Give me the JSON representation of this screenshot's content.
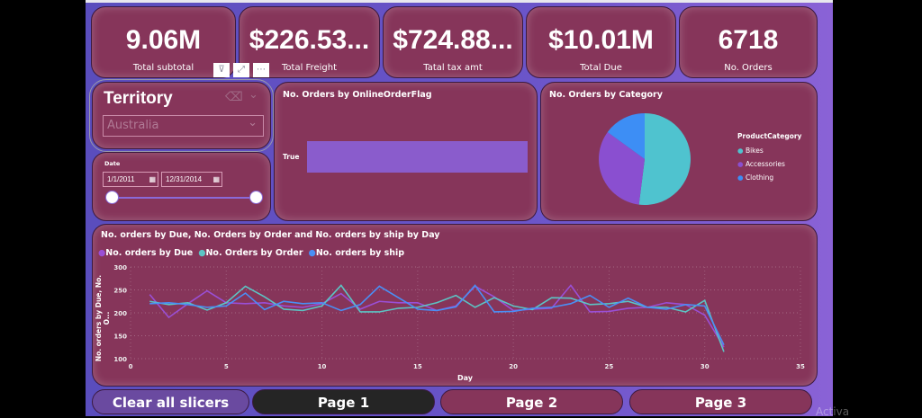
{
  "kpis": [
    {
      "value": "9.06M",
      "label": "Total subtotal"
    },
    {
      "value": "$226.53...",
      "label": "Total Freight"
    },
    {
      "value": "$724.88...",
      "label": "Tatal tax amt"
    },
    {
      "value": "$10.01M",
      "label": "Total Due"
    },
    {
      "value": "6718",
      "label": "No. Orders"
    }
  ],
  "territory": {
    "title": "Territory",
    "selected": "Australia"
  },
  "date": {
    "label": "Date",
    "start": "1/1/2011",
    "end": "12/31/2014",
    "range_fraction": [
      0,
      1
    ]
  },
  "chart_data": [
    {
      "type": "bar",
      "title": "No. Orders by OnlineOrderFlag",
      "categories": [
        "True"
      ],
      "values": [
        6718
      ]
    },
    {
      "type": "pie",
      "title": "No. Orders by Category",
      "legend_title": "ProductCategory",
      "categories": [
        "Bikes",
        "Accessories",
        "Clothing"
      ],
      "values": [
        52,
        33,
        15
      ],
      "colors": [
        "#4fc3cf",
        "#8a4fd0",
        "#3d8ef5"
      ],
      "legend": "right"
    },
    {
      "type": "line",
      "title": "No. orders by Due, No. Orders by Order and No. orders by ship by Day",
      "xlabel": "Day",
      "ylabel": "No. orders by Due, No. O...",
      "xlim": [
        0,
        35
      ],
      "ylim": [
        100,
        300
      ],
      "xticks": [
        "0",
        "5",
        "10",
        "15",
        "20",
        "25",
        "30",
        "35"
      ],
      "yticks": [
        "100",
        "150",
        "200",
        "250",
        "300"
      ],
      "x": [
        1,
        2,
        3,
        4,
        5,
        6,
        7,
        8,
        9,
        10,
        11,
        12,
        13,
        14,
        15,
        16,
        17,
        18,
        19,
        20,
        21,
        22,
        23,
        24,
        25,
        26,
        27,
        28,
        29,
        30,
        31
      ],
      "series": [
        {
          "name": "No. orders by Due",
          "color": "#9a4fd6",
          "values": [
            240,
            190,
            220,
            248,
            222,
            220,
            222,
            215,
            212,
            220,
            242,
            208,
            225,
            222,
            222,
            205,
            215,
            258,
            235,
            205,
            208,
            210,
            260,
            202,
            203,
            210,
            212,
            222,
            218,
            195,
            125
          ]
        },
        {
          "name": "No. Orders by Order",
          "color": "#5cc4c4",
          "values": [
            225,
            218,
            222,
            206,
            222,
            258,
            235,
            208,
            205,
            215,
            260,
            202,
            202,
            210,
            212,
            222,
            238,
            212,
            233,
            215,
            207,
            233,
            232,
            218,
            220,
            225,
            212,
            212,
            202,
            227,
            115
          ]
        },
        {
          "name": "No. orders by ship",
          "color": "#4a8ff5",
          "values": [
            220,
            222,
            218,
            212,
            215,
            243,
            207,
            225,
            220,
            222,
            205,
            218,
            258,
            233,
            208,
            205,
            213,
            260,
            202,
            203,
            210,
            212,
            220,
            238,
            212,
            232,
            212,
            208,
            218,
            215,
            130
          ]
        }
      ]
    }
  ],
  "buttons": {
    "clear": "Clear all slicers",
    "page1": "Page 1",
    "page2": "Page 2",
    "page3": "Page 3"
  },
  "watermark": "Activa"
}
